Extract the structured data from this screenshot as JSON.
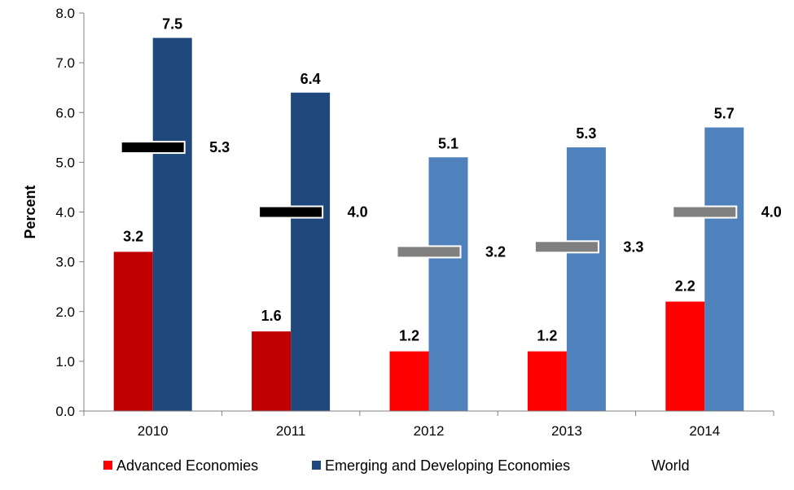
{
  "chart_data": {
    "type": "bar",
    "ylabel": "Percent",
    "ylim": [
      0,
      8
    ],
    "yticks": [
      "0.0",
      "1.0",
      "2.0",
      "3.0",
      "4.0",
      "5.0",
      "6.0",
      "7.0",
      "8.0"
    ],
    "categories": [
      "2010",
      "2011",
      "2012",
      "2013",
      "2014"
    ],
    "series": [
      {
        "name": "Advanced Economies",
        "values": [
          3.2,
          1.6,
          1.2,
          1.2,
          2.2
        ],
        "labels": [
          "3.2",
          "1.6",
          "1.2",
          "1.2",
          "2.2"
        ],
        "colors": [
          "#c00000",
          "#c00000",
          "#ff0000",
          "#ff0000",
          "#ff0000"
        ]
      },
      {
        "name": "Emerging and Developing Economies",
        "values": [
          7.5,
          6.4,
          5.1,
          5.3,
          5.7
        ],
        "labels": [
          "7.5",
          "6.4",
          "5.1",
          "5.3",
          "5.7"
        ],
        "colors": [
          "#1f497d",
          "#1f497d",
          "#4f81bd",
          "#4f81bd",
          "#4f81bd"
        ]
      },
      {
        "name": "World",
        "type": "marker",
        "values": [
          5.3,
          4.0,
          3.2,
          3.3,
          4.0
        ],
        "labels": [
          "5.3",
          "4.0",
          "3.2",
          "3.3",
          "4.0"
        ],
        "colors": [
          "#000000",
          "#000000",
          "#808080",
          "#808080",
          "#808080"
        ]
      }
    ],
    "legend": {
      "position": "bottom",
      "items": [
        {
          "label": "Advanced Economies",
          "color": "#ff0000"
        },
        {
          "label": "Emerging and Developing Economies",
          "color": "#1f497d"
        },
        {
          "label": "World"
        }
      ]
    },
    "grid": false
  }
}
